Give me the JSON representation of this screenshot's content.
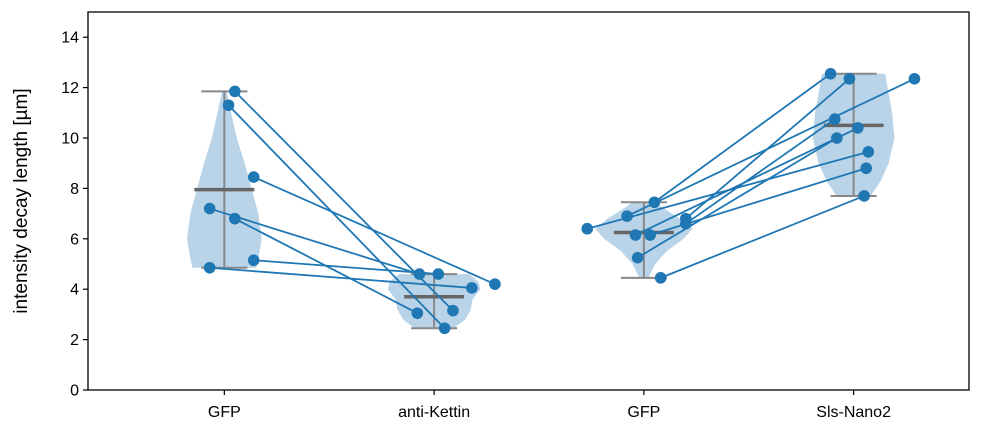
{
  "chart_data": {
    "type": "violin",
    "ylabel": "intensity decay length [µm]",
    "xlabel": "",
    "ylim": [
      0,
      15
    ],
    "yticks": [
      0,
      2,
      4,
      6,
      8,
      10,
      12,
      14
    ],
    "categories": [
      "GFP",
      "anti-Kettin",
      "GFP",
      "Sls-Nano2"
    ],
    "colors": {
      "violin_fill": "#b9d4e8",
      "point": "#1f77b4",
      "line": "#1f77b4",
      "whisker": "#888888",
      "mean": "#666666"
    },
    "groups": [
      {
        "label": "GFP",
        "min": 4.85,
        "max": 11.85,
        "mean": 7.95,
        "points": [
          {
            "dx": 0.05,
            "y": 11.85
          },
          {
            "dx": 0.02,
            "y": 11.3
          },
          {
            "dx": 0.14,
            "y": 8.45
          },
          {
            "dx": -0.07,
            "y": 7.2
          },
          {
            "dx": 0.05,
            "y": 6.8
          },
          {
            "dx": 0.14,
            "y": 5.15
          },
          {
            "dx": -0.07,
            "y": 4.85
          }
        ],
        "density": [
          [
            4.85,
            0.56
          ],
          [
            5.2,
            0.6
          ],
          [
            6.0,
            0.66
          ],
          [
            7.0,
            0.6
          ],
          [
            8.0,
            0.48
          ],
          [
            9.0,
            0.36
          ],
          [
            10.0,
            0.22
          ],
          [
            11.0,
            0.12
          ],
          [
            11.85,
            0.04
          ]
        ]
      },
      {
        "label": "anti-Kettin",
        "min": 2.45,
        "max": 4.6,
        "mean": 3.7,
        "points": [
          {
            "dx": -0.07,
            "y": 4.6
          },
          {
            "dx": 0.02,
            "y": 4.6
          },
          {
            "dx": 0.29,
            "y": 4.2
          },
          {
            "dx": 0.18,
            "y": 4.05
          },
          {
            "dx": 0.09,
            "y": 3.15
          },
          {
            "dx": -0.08,
            "y": 3.05
          },
          {
            "dx": 0.05,
            "y": 2.45
          }
        ],
        "density": [
          [
            2.45,
            0.35
          ],
          [
            2.8,
            0.55
          ],
          [
            3.2,
            0.65
          ],
          [
            3.6,
            0.68
          ],
          [
            4.0,
            0.82
          ],
          [
            4.3,
            0.78
          ],
          [
            4.6,
            0.62
          ]
        ]
      },
      {
        "label": "GFP",
        "min": 4.45,
        "max": 7.45,
        "mean": 6.25,
        "points": [
          {
            "dx": 0.05,
            "y": 7.45
          },
          {
            "dx": -0.08,
            "y": 6.9
          },
          {
            "dx": 0.2,
            "y": 6.8
          },
          {
            "dx": 0.2,
            "y": 6.6
          },
          {
            "dx": -0.27,
            "y": 6.4
          },
          {
            "dx": -0.04,
            "y": 6.15
          },
          {
            "dx": 0.03,
            "y": 6.15
          },
          {
            "dx": -0.03,
            "y": 5.25
          },
          {
            "dx": 0.08,
            "y": 4.45
          }
        ],
        "density": [
          [
            4.45,
            0.08
          ],
          [
            5.0,
            0.2
          ],
          [
            5.5,
            0.4
          ],
          [
            6.0,
            0.7
          ],
          [
            6.4,
            0.86
          ],
          [
            6.8,
            0.64
          ],
          [
            7.2,
            0.36
          ],
          [
            7.45,
            0.2
          ]
        ]
      },
      {
        "label": "Sls-Nano2",
        "min": 7.7,
        "max": 12.55,
        "mean": 10.5,
        "points": [
          {
            "dx": -0.11,
            "y": 12.55
          },
          {
            "dx": -0.02,
            "y": 12.35
          },
          {
            "dx": 0.29,
            "y": 12.35
          },
          {
            "dx": -0.09,
            "y": 10.75
          },
          {
            "dx": 0.02,
            "y": 10.4
          },
          {
            "dx": -0.08,
            "y": 10.0
          },
          {
            "dx": 0.07,
            "y": 9.45
          },
          {
            "dx": 0.06,
            "y": 8.8
          },
          {
            "dx": 0.05,
            "y": 7.7
          }
        ],
        "density": [
          [
            7.7,
            0.3
          ],
          [
            8.3,
            0.48
          ],
          [
            9.0,
            0.62
          ],
          [
            10.0,
            0.72
          ],
          [
            11.0,
            0.68
          ],
          [
            12.0,
            0.6
          ],
          [
            12.55,
            0.56
          ]
        ]
      }
    ],
    "pairs": [
      {
        "from": [
          0,
          0
        ],
        "to": [
          1,
          4
        ]
      },
      {
        "from": [
          0,
          1
        ],
        "to": [
          1,
          6
        ]
      },
      {
        "from": [
          0,
          2
        ],
        "to": [
          1,
          2
        ]
      },
      {
        "from": [
          0,
          3
        ],
        "to": [
          1,
          0
        ]
      },
      {
        "from": [
          0,
          4
        ],
        "to": [
          1,
          5
        ]
      },
      {
        "from": [
          0,
          5
        ],
        "to": [
          1,
          1
        ]
      },
      {
        "from": [
          0,
          6
        ],
        "to": [
          1,
          3
        ]
      },
      {
        "from": [
          2,
          0
        ],
        "to": [
          3,
          0
        ]
      },
      {
        "from": [
          2,
          1
        ],
        "to": [
          3,
          2
        ]
      },
      {
        "from": [
          2,
          2
        ],
        "to": [
          3,
          1
        ]
      },
      {
        "from": [
          2,
          3
        ],
        "to": [
          3,
          3
        ]
      },
      {
        "from": [
          2,
          4
        ],
        "to": [
          3,
          6
        ]
      },
      {
        "from": [
          2,
          5
        ],
        "to": [
          3,
          4
        ]
      },
      {
        "from": [
          2,
          6
        ],
        "to": [
          3,
          7
        ]
      },
      {
        "from": [
          2,
          7
        ],
        "to": [
          3,
          5
        ]
      },
      {
        "from": [
          2,
          8
        ],
        "to": [
          3,
          8
        ]
      }
    ]
  }
}
